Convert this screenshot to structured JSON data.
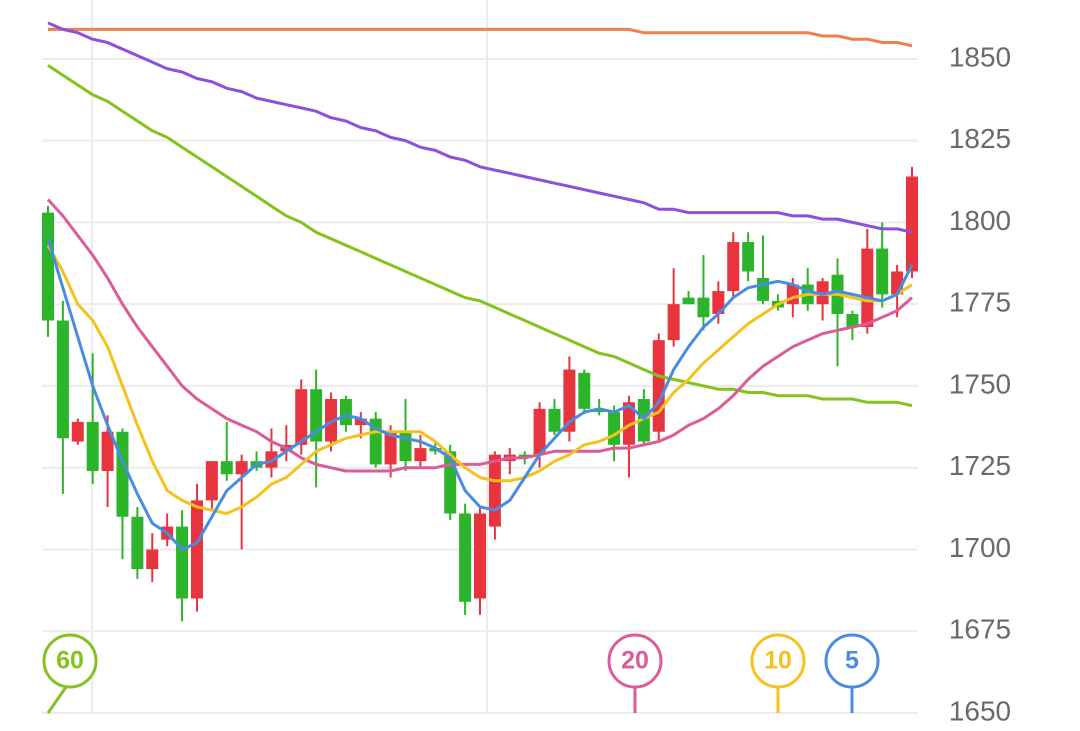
{
  "chart_data": {
    "type": "candlestick",
    "ylim": [
      1650,
      1868
    ],
    "yticks": [
      1650,
      1675,
      1700,
      1725,
      1750,
      1775,
      1800,
      1825,
      1850
    ],
    "grid": true,
    "up_color": "#e8343f",
    "down_color": "#2cb52a",
    "open": [
      1803,
      1770,
      1733,
      1739,
      1724,
      1736,
      1710,
      1694,
      1703,
      1707,
      1685,
      1715,
      1727,
      1723,
      1727,
      1725,
      1730,
      1732,
      1749,
      1733,
      1746,
      1738,
      1740,
      1726,
      1736,
      1727,
      1731,
      1730,
      1711,
      1685,
      1707,
      1727,
      1729,
      1729,
      1743,
      1736,
      1754,
      1743,
      1742,
      1732,
      1746,
      1736,
      1764,
      1777,
      1777,
      1772,
      1779,
      1794,
      1783,
      1776,
      1775,
      1781,
      1775,
      1784,
      1772,
      1768,
      1792,
      1778,
      1785
    ],
    "close": [
      1770,
      1734,
      1739,
      1724,
      1736,
      1710,
      1694,
      1700,
      1707,
      1685,
      1715,
      1727,
      1723,
      1727,
      1725,
      1730,
      1732,
      1749,
      1733,
      1746,
      1738,
      1740,
      1726,
      1736,
      1727,
      1731,
      1730,
      1711,
      1684,
      1711,
      1729,
      1729,
      1728,
      1743,
      1736,
      1755,
      1743,
      1742,
      1732,
      1745,
      1733,
      1764,
      1775,
      1775,
      1771,
      1779,
      1794,
      1785,
      1776,
      1774,
      1781,
      1775,
      1782,
      1772,
      1768,
      1792,
      1778,
      1785,
      1814
    ],
    "high": [
      1805,
      1776,
      1740,
      1760,
      1741,
      1737,
      1713,
      1705,
      1711,
      1712,
      1720,
      1727,
      1739,
      1729,
      1730,
      1737,
      1738,
      1752,
      1755,
      1748,
      1747,
      1742,
      1742,
      1738,
      1746,
      1735,
      1733,
      1732,
      1714,
      1713,
      1730,
      1731,
      1730,
      1745,
      1746,
      1759,
      1755,
      1746,
      1744,
      1747,
      1749,
      1766,
      1786,
      1779,
      1790,
      1782,
      1797,
      1797,
      1796,
      1778,
      1783,
      1786,
      1783,
      1789,
      1773,
      1798,
      1800,
      1787,
      1817
    ],
    "low": [
      1765,
      1717,
      1732,
      1720,
      1713,
      1697,
      1691,
      1690,
      1701,
      1678,
      1681,
      1712,
      1721,
      1700,
      1724,
      1722,
      1727,
      1729,
      1719,
      1730,
      1736,
      1734,
      1725,
      1722,
      1724,
      1725,
      1729,
      1709,
      1680,
      1680,
      1703,
      1723,
      1726,
      1725,
      1735,
      1733,
      1742,
      1741,
      1727,
      1722,
      1732,
      1733,
      1762,
      1775,
      1767,
      1769,
      1777,
      1782,
      1775,
      1773,
      1771,
      1773,
      1770,
      1756,
      1764,
      1766,
      1774,
      1771,
      1783
    ],
    "series": [
      {
        "color": "#f07f4a",
        "values": [
          1859,
          1859,
          1859,
          1859,
          1859,
          1859,
          1859,
          1859,
          1859,
          1859,
          1859,
          1859,
          1859,
          1859,
          1859,
          1859,
          1859,
          1859,
          1859,
          1859,
          1859,
          1859,
          1859,
          1859,
          1859,
          1859,
          1859,
          1859,
          1859,
          1859,
          1859,
          1859,
          1859,
          1859,
          1859,
          1859,
          1859,
          1859,
          1859,
          1859,
          1858,
          1858,
          1858,
          1858,
          1858,
          1858,
          1858,
          1858,
          1858,
          1858,
          1858,
          1858,
          1857,
          1857,
          1856,
          1856,
          1855,
          1855,
          1854
        ]
      },
      {
        "color": "#8e4fdc",
        "values": [
          1861,
          1859,
          1858,
          1856,
          1855,
          1853,
          1851,
          1849,
          1847,
          1846,
          1844,
          1843,
          1841,
          1840,
          1838,
          1837,
          1836,
          1835,
          1834,
          1832,
          1831,
          1829,
          1828,
          1826,
          1825,
          1823,
          1822,
          1820,
          1819,
          1817,
          1816,
          1815,
          1814,
          1813,
          1812,
          1811,
          1810,
          1809,
          1808,
          1807,
          1806,
          1804,
          1804,
          1803,
          1803,
          1803,
          1803,
          1803,
          1803,
          1803,
          1802,
          1802,
          1801,
          1801,
          1800,
          1799,
          1798,
          1798,
          1797
        ]
      },
      {
        "name": "60",
        "color": "#84c21f",
        "values": [
          1848,
          1845,
          1842,
          1839,
          1837,
          1834,
          1831,
          1828,
          1826,
          1823,
          1820,
          1817,
          1814,
          1811,
          1808,
          1805,
          1802,
          1800,
          1797,
          1795,
          1793,
          1791,
          1789,
          1787,
          1785,
          1783,
          1781,
          1779,
          1777,
          1776,
          1774,
          1772,
          1770,
          1768,
          1766,
          1764,
          1762,
          1760,
          1759,
          1757,
          1755,
          1753,
          1752,
          1751,
          1750,
          1749,
          1749,
          1748,
          1748,
          1747,
          1747,
          1747,
          1746,
          1746,
          1746,
          1745,
          1745,
          1745,
          1744
        ]
      },
      {
        "name": "20",
        "color": "#dc5c9a",
        "values": [
          1807,
          1802,
          1796,
          1790,
          1783,
          1775,
          1768,
          1762,
          1756,
          1750,
          1746,
          1743,
          1740,
          1738,
          1736,
          1733,
          1731,
          1728,
          1726,
          1725,
          1724,
          1724,
          1724,
          1724,
          1725,
          1725,
          1725,
          1726,
          1726,
          1726,
          1727,
          1728,
          1728,
          1729,
          1730,
          1730,
          1730,
          1730,
          1731,
          1731,
          1732,
          1733,
          1735,
          1738,
          1740,
          1743,
          1747,
          1752,
          1756,
          1759,
          1762,
          1764,
          1766,
          1767,
          1768,
          1769,
          1771,
          1773,
          1777
        ]
      },
      {
        "name": "10",
        "color": "#f5c21d",
        "values": [
          1793,
          1785,
          1775,
          1770,
          1762,
          1750,
          1738,
          1727,
          1718,
          1715,
          1713,
          1712,
          1711,
          1713,
          1716,
          1720,
          1722,
          1726,
          1730,
          1732,
          1734,
          1735,
          1736,
          1736,
          1736,
          1736,
          1733,
          1729,
          1725,
          1722,
          1721,
          1721,
          1722,
          1724,
          1727,
          1729,
          1732,
          1733,
          1735,
          1738,
          1740,
          1742,
          1748,
          1752,
          1757,
          1761,
          1765,
          1769,
          1772,
          1775,
          1777,
          1778,
          1778,
          1778,
          1777,
          1776,
          1776,
          1778,
          1781
        ]
      },
      {
        "name": "5",
        "color": "#4a8ce0",
        "values": [
          1795,
          1780,
          1765,
          1750,
          1738,
          1727,
          1717,
          1708,
          1705,
          1700,
          1702,
          1710,
          1718,
          1722,
          1726,
          1727,
          1730,
          1733,
          1736,
          1739,
          1741,
          1740,
          1737,
          1735,
          1734,
          1733,
          1731,
          1728,
          1718,
          1713,
          1712,
          1715,
          1722,
          1729,
          1734,
          1739,
          1742,
          1743,
          1742,
          1744,
          1740,
          1745,
          1755,
          1762,
          1768,
          1772,
          1777,
          1780,
          1781,
          1782,
          1781,
          1779,
          1778,
          1779,
          1778,
          1777,
          1776,
          1778,
          1787
        ]
      }
    ]
  }
}
